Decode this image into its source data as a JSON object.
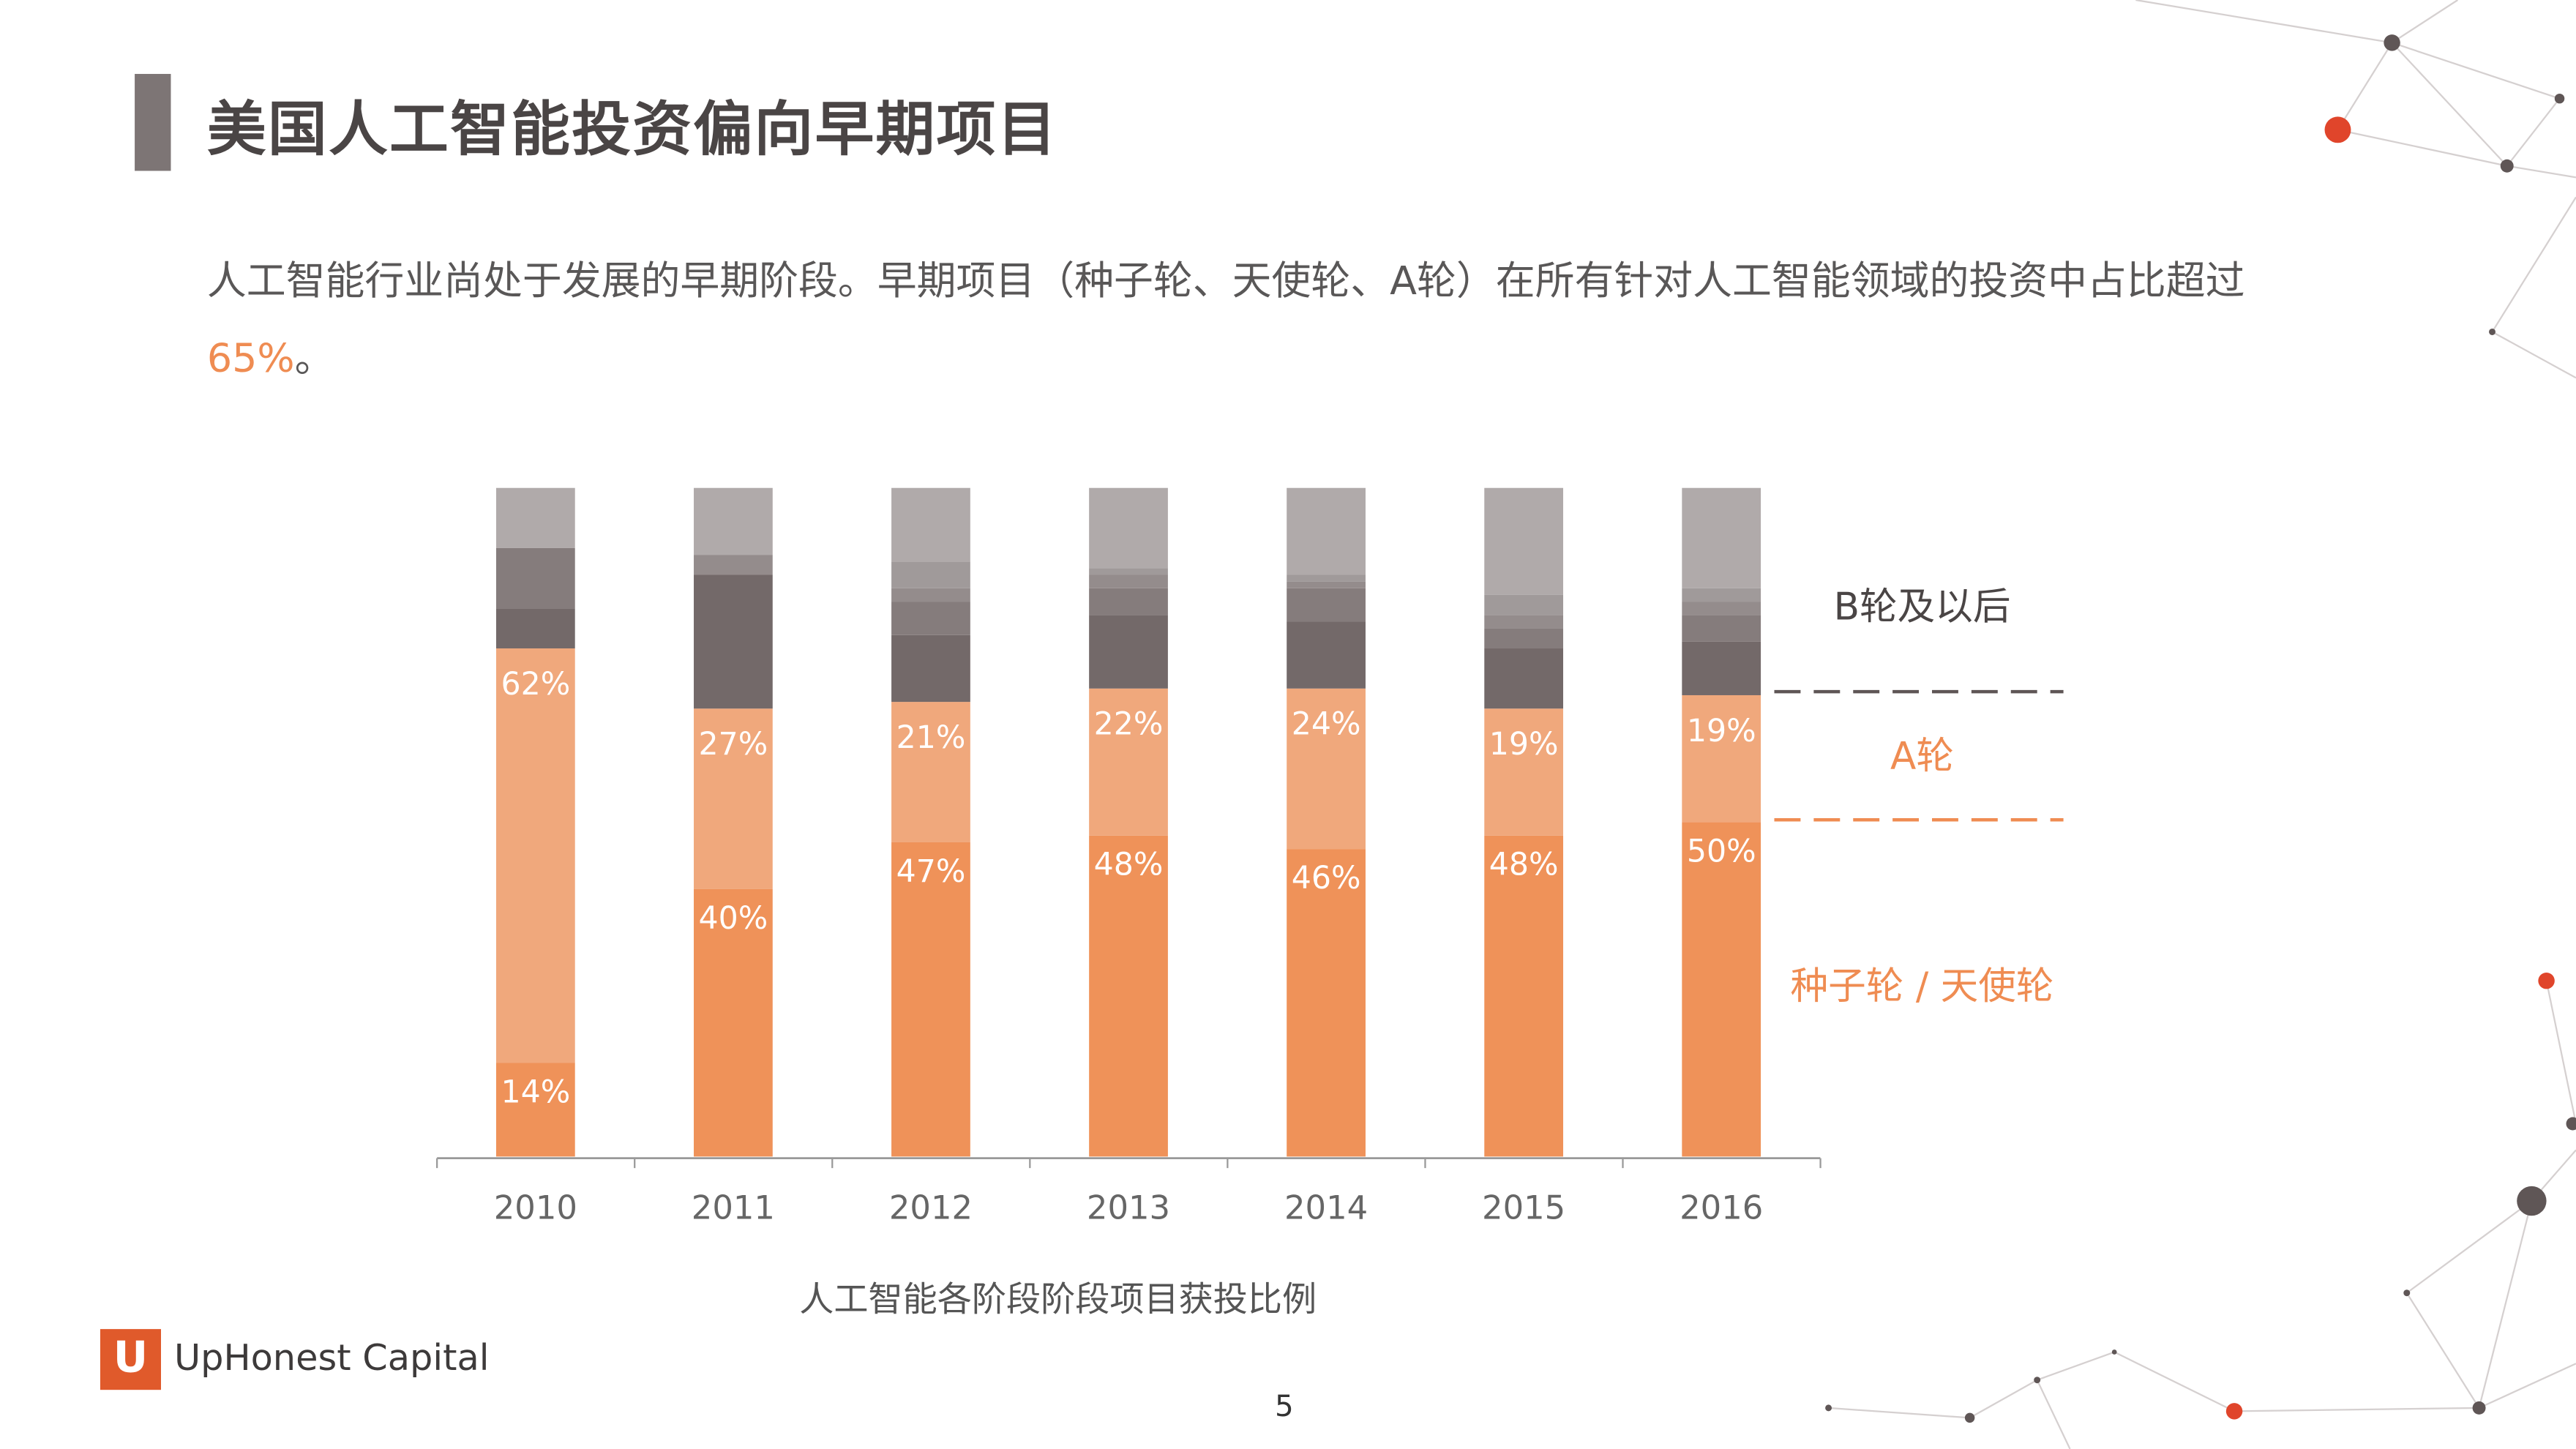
{
  "title": "美国人工智能投资偏向早期项目",
  "body": {
    "text": "人工智能行业尚处于发展的早期阶段。早期项目（种子轮、天使轮、A轮）在所有针对人工智能领域的投资中占比超过",
    "highlight": "65%",
    "end": "。"
  },
  "chart_data": {
    "type": "bar",
    "stacked": true,
    "normalized": true,
    "title": "人工智能各阶段阶段项目获投比例",
    "categories": [
      "2010",
      "2011",
      "2012",
      "2013",
      "2014",
      "2015",
      "2016"
    ],
    "series": [
      {
        "name": "种子轮 / 天使轮",
        "color": "#ef9259",
        "values": [
          14,
          40,
          47,
          48,
          46,
          48,
          50
        ],
        "labels": [
          "14%",
          "40%",
          "47%",
          "48%",
          "46%",
          "48%",
          "50%"
        ]
      },
      {
        "name": "A轮",
        "color": "#f0a87c",
        "values": [
          62,
          27,
          21,
          22,
          24,
          19,
          19
        ],
        "labels": [
          "62%",
          "27%",
          "21%",
          "22%",
          "24%",
          "19%",
          "19%"
        ]
      },
      {
        "name": "B轮及以后",
        "colors": [
          "#736969",
          "#857c7c",
          "#948c8c",
          "#a09a9a",
          "#b0aaaa"
        ],
        "segments": [
          [
            6,
            9,
            0,
            0,
            9
          ],
          [
            20,
            0,
            3,
            0,
            10
          ],
          [
            10,
            5,
            2,
            4,
            11
          ],
          [
            11,
            4,
            2,
            1,
            12
          ],
          [
            10,
            5,
            1,
            1,
            13
          ],
          [
            9,
            3,
            2,
            3,
            16
          ],
          [
            8,
            4,
            2,
            2,
            15
          ]
        ]
      }
    ],
    "legend": [
      "B轮及以后",
      "A轮",
      "种子轮 / 天使轮"
    ],
    "legend_placement": "right",
    "ylim": [
      0,
      100
    ],
    "grid": false
  },
  "logo": {
    "mark": "U",
    "text": "UpHonest Capital"
  },
  "page_number": "5",
  "colors": {
    "accent": "#ef8c52",
    "dot": "#e0452b"
  }
}
